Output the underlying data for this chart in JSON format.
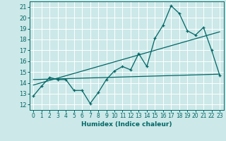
{
  "xlabel": "Humidex (Indice chaleur)",
  "ylabel": "",
  "xlim": [
    -0.5,
    23.5
  ],
  "ylim": [
    11.5,
    21.5
  ],
  "yticks": [
    12,
    13,
    14,
    15,
    16,
    17,
    18,
    19,
    20,
    21
  ],
  "xticks": [
    0,
    1,
    2,
    3,
    4,
    5,
    6,
    7,
    8,
    9,
    10,
    11,
    12,
    13,
    14,
    15,
    16,
    17,
    18,
    19,
    20,
    21,
    22,
    23
  ],
  "bg_color": "#cce8e8",
  "line_color": "#006666",
  "grid_color": "#ffffff",
  "data_x": [
    0,
    1,
    2,
    3,
    4,
    5,
    6,
    7,
    8,
    9,
    10,
    11,
    12,
    13,
    14,
    15,
    16,
    17,
    18,
    19,
    20,
    21,
    22,
    23
  ],
  "data_y": [
    12.8,
    13.7,
    14.5,
    14.3,
    14.3,
    13.3,
    13.3,
    12.1,
    13.1,
    14.3,
    15.1,
    15.5,
    15.2,
    16.7,
    15.5,
    18.1,
    19.3,
    21.1,
    20.4,
    18.8,
    18.4,
    19.1,
    17.0,
    14.7
  ],
  "trend1_x": [
    0,
    23
  ],
  "trend1_y": [
    13.8,
    18.7
  ],
  "trend2_x": [
    0,
    23
  ],
  "trend2_y": [
    14.3,
    14.8
  ]
}
